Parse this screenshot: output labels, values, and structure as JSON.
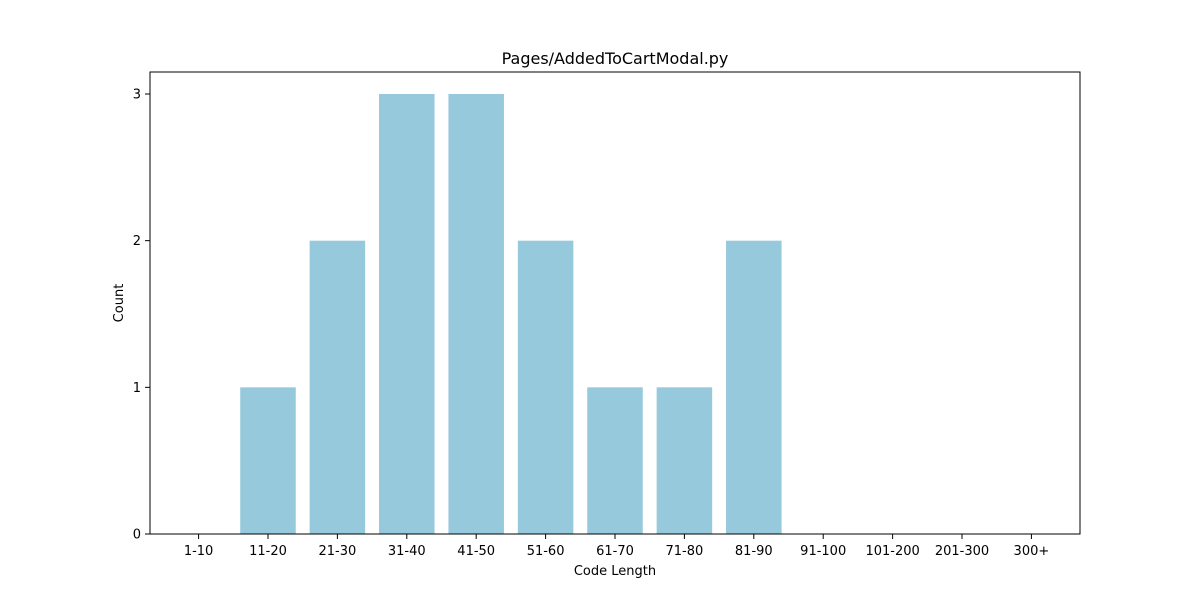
{
  "chart_data": {
    "type": "bar",
    "title": "Pages/AddedToCartModal.py",
    "xlabel": "Code Length",
    "ylabel": "Count",
    "categories": [
      "1-10",
      "11-20",
      "21-30",
      "31-40",
      "41-50",
      "51-60",
      "61-70",
      "71-80",
      "81-90",
      "91-100",
      "101-200",
      "201-300",
      "300+"
    ],
    "values": [
      0,
      1,
      2,
      3,
      3,
      2,
      1,
      1,
      2,
      0,
      0,
      0,
      0
    ],
    "ylim": [
      0,
      3.15
    ],
    "yticks": [
      0,
      1,
      2,
      3
    ],
    "grid": false,
    "bar_color": "#96c9dc"
  }
}
